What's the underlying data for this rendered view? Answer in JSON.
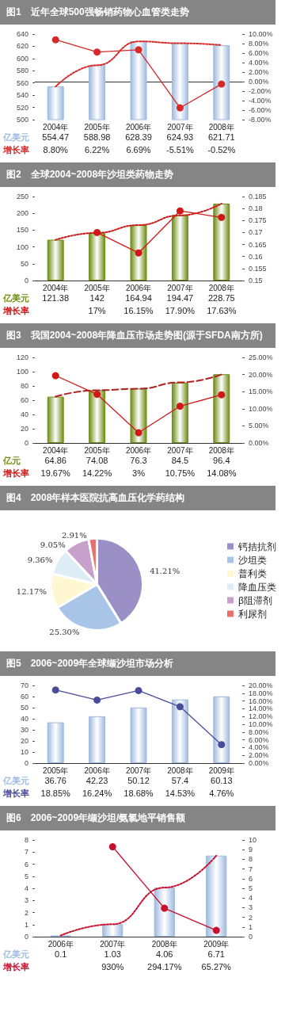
{
  "chart_data": [
    {
      "type": "bar",
      "title": "图1　近年全球500强畅销药物心血管类走势",
      "categories": [
        "2004年",
        "2005年",
        "2006年",
        "2007年",
        "2008年"
      ],
      "ylim": [
        500,
        640
      ],
      "yticks": [
        500,
        520,
        540,
        560,
        580,
        600,
        620,
        640
      ],
      "y2lim": [
        -8,
        10
      ],
      "y2ticks": [
        {
          "value": -8,
          "label": "-8.00%"
        },
        {
          "value": -6,
          "label": "-6.00%"
        },
        {
          "value": -4,
          "label": "-4.00%"
        },
        {
          "value": -2,
          "label": "-2.00%"
        },
        {
          "value": 0,
          "label": "0.00%"
        },
        {
          "value": 2,
          "label": "2.00%"
        },
        {
          "value": 4,
          "label": "4.00%"
        },
        {
          "value": 6,
          "label": "6.00%"
        },
        {
          "value": 8,
          "label": "8.00%"
        },
        {
          "value": 10,
          "label": "10.00%"
        }
      ],
      "series": [
        {
          "name": "亿美元",
          "type": "bar",
          "color": "#9fbade",
          "values": [
            554.47,
            588.98,
            628.39,
            624.93,
            621.71
          ],
          "value_labels": [
            "554.47",
            "588.98",
            "628.39",
            "624.93",
            "621.71"
          ]
        },
        {
          "name": "增长率",
          "type": "line",
          "axis": "y2",
          "color": "#d42a2a",
          "marker": "circle",
          "line_style": "solid",
          "values": [
            8.8,
            6.22,
            6.69,
            -5.51,
            -0.52
          ],
          "value_labels": [
            "8.80%",
            "6.22%",
            "6.69%",
            "-5.51%",
            "-0.52%"
          ]
        },
        {
          "type": "line",
          "color": "#d42a2a",
          "marker": "none",
          "line_style": "dotted",
          "values": [
            554,
            589,
            628,
            625,
            622
          ]
        }
      ]
    },
    {
      "type": "bar",
      "title": "图2　全球2004~2008年沙坦类药物走势",
      "categories": [
        "2004年",
        "2005年",
        "2006年",
        "2007年",
        "2008年"
      ],
      "ylim": [
        0,
        250
      ],
      "yticks": [
        0,
        50,
        100,
        150,
        200,
        250
      ],
      "y2lim": [
        0.15,
        0.185
      ],
      "y2ticks": [
        0.15,
        0.155,
        0.16,
        0.165,
        0.17,
        0.175,
        0.18,
        0.185
      ],
      "series": [
        {
          "name": "亿美元",
          "type": "bar",
          "color": "#6e8c14",
          "values": [
            121.38,
            142,
            164.94,
            194.47,
            228.75
          ],
          "value_labels": [
            "121.38",
            "142",
            "164.94",
            "194.47",
            "228.75"
          ]
        },
        {
          "name": "增长率",
          "type": "line",
          "axis": "y2",
          "color": "#d01818",
          "marker": "circle",
          "line_style": "solid",
          "values": [
            null,
            0.17,
            0.1615,
            0.179,
            0.1763
          ],
          "value_labels": [
            null,
            "17%",
            "16.15%",
            "17.90%",
            "17.63%"
          ]
        },
        {
          "type": "line",
          "color": "#d01818",
          "marker": "none",
          "line_style": "dotted",
          "values": [
            121,
            142,
            165,
            194,
            229
          ]
        }
      ]
    },
    {
      "type": "bar",
      "title": "图3　我国2004~2008年降血压市场走势图(源于SFDA南方所)",
      "categories": [
        "2004年",
        "2005年",
        "2006年",
        "2007年",
        "2008年"
      ],
      "ylim": [
        0,
        120
      ],
      "yticks": [
        0,
        20,
        40,
        60,
        80,
        100,
        120
      ],
      "y2lim": [
        0,
        25
      ],
      "y2ticks": [
        {
          "value": 0,
          "label": "0.00%"
        },
        {
          "value": 5,
          "label": "5.00%"
        },
        {
          "value": 10,
          "label": "10.00%"
        },
        {
          "value": 15,
          "label": "15.00%"
        },
        {
          "value": 20,
          "label": "20.00%"
        },
        {
          "value": 25,
          "label": "25.00%"
        }
      ],
      "series": [
        {
          "name": "亿元",
          "type": "bar",
          "color": "#6e8c14",
          "values": [
            64.86,
            74.08,
            76.3,
            84.5,
            96.4
          ],
          "value_labels": [
            "64.86",
            "74.08",
            "76.3",
            "84.5",
            "96.4"
          ]
        },
        {
          "name": "增长率",
          "type": "line",
          "axis": "y2",
          "color": "#d01818",
          "marker": "circle",
          "line_style": "solid",
          "values": [
            19.67,
            14.22,
            3,
            10.75,
            14.08
          ],
          "value_labels": [
            "19.67%",
            "14.22%",
            "3%",
            "10.75%",
            "14.08%"
          ]
        },
        {
          "type": "line",
          "color": "#b02020",
          "marker": "none",
          "line_style": "dashed",
          "values": [
            65,
            74,
            76,
            85,
            96
          ]
        }
      ]
    },
    {
      "type": "pie",
      "title": "图4　2008年样本医院抗高血压化学药结构",
      "categories": [
        "钙拮抗剂",
        "沙坦类",
        "普利类",
        "降血压类",
        "β阻滞剂",
        "利尿剂"
      ],
      "values": [
        41.21,
        25.3,
        12.17,
        9.36,
        9.05,
        2.91
      ],
      "colors": [
        "#9a90c6",
        "#a8c4e6",
        "#fff7d2",
        "#ddedf5",
        "#c8a0cc",
        "#e8706a"
      ],
      "value_labels": [
        "41.21%",
        "25.30%",
        "12.17%",
        "9.36%",
        "9.05%",
        "2.91%"
      ],
      "legend": "right"
    },
    {
      "type": "bar",
      "title": "图5　2006~2009年全球缬沙坦市场分析",
      "categories": [
        "2005年",
        "2006年",
        "2007年",
        "2008年",
        "2009年"
      ],
      "ylim": [
        0,
        70
      ],
      "yticks": [
        0,
        10,
        20,
        30,
        40,
        50,
        60,
        70
      ],
      "y2lim": [
        0,
        20
      ],
      "y2ticks": [
        {
          "value": 0,
          "label": "0.00%"
        },
        {
          "value": 2,
          "label": "2.00%"
        },
        {
          "value": 4,
          "label": "4.00%"
        },
        {
          "value": 6,
          "label": "6.00%"
        },
        {
          "value": 8,
          "label": "8.00%"
        },
        {
          "value": 10,
          "label": "10.00%"
        },
        {
          "value": 12,
          "label": "12.00%"
        },
        {
          "value": 14,
          "label": "14.00%"
        },
        {
          "value": 16,
          "label": "16.00%"
        },
        {
          "value": 18,
          "label": "18.00%"
        },
        {
          "value": 20,
          "label": "20.00%"
        }
      ],
      "series": [
        {
          "name": "亿美元",
          "type": "bar",
          "color": "#9fbade",
          "values": [
            36.76,
            42.23,
            50.12,
            57.4,
            60.13
          ],
          "value_labels": [
            "36.76",
            "42.23",
            "50.12",
            "57.4",
            "60.13"
          ]
        },
        {
          "name": "增长率",
          "type": "line",
          "axis": "y2",
          "color": "#4a4c9a",
          "marker": "circle",
          "line_style": "solid",
          "values": [
            18.85,
            16.24,
            18.68,
            14.53,
            4.76
          ],
          "value_labels": [
            "18.85%",
            "16.24%",
            "18.68%",
            "14.53%",
            "4.76%"
          ]
        }
      ]
    },
    {
      "type": "bar",
      "title": "图6　2006~2009年缬沙坦/氨氯地平销售额",
      "categories": [
        "2006年",
        "2007年",
        "2008年",
        "2009年"
      ],
      "ylim": [
        0,
        8
      ],
      "yticks": [
        0,
        1,
        2,
        3,
        4,
        5,
        6,
        7,
        8
      ],
      "y2lim": [
        0,
        10
      ],
      "y2ticks": [
        0,
        1,
        2,
        3,
        4,
        5,
        6,
        7,
        8,
        9,
        10
      ],
      "series": [
        {
          "name": "亿美元",
          "type": "bar",
          "color": "#9fbade",
          "values": [
            0.1,
            1.03,
            4.06,
            6.71
          ],
          "value_labels": [
            "0.1",
            "1.03",
            "4.06",
            "6.71"
          ]
        },
        {
          "name": "增长率",
          "type": "line",
          "axis": "y2",
          "color": "#c8102e",
          "marker": "circle",
          "line_style": "solid",
          "values": [
            null,
            9.3,
            2.9417,
            0.6527
          ],
          "value_labels": [
            null,
            "930%",
            "294.17%",
            "65.27%"
          ]
        },
        {
          "type": "line",
          "color": "#c8102e",
          "marker": "none",
          "line_style": "dotted",
          "values": [
            0.1,
            1.03,
            4.06,
            6.71
          ]
        }
      ]
    }
  ]
}
